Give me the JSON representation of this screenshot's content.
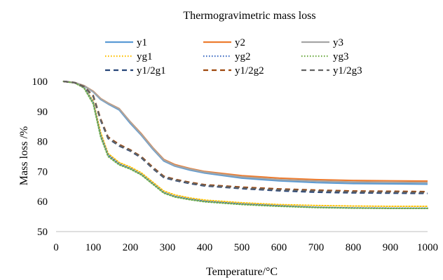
{
  "chart_data": {
    "type": "line",
    "title": "Thermogravimetric mass loss",
    "xlabel": "Temperature/°C",
    "ylabel": "Mass loss /%",
    "xlim": [
      0,
      1000
    ],
    "ylim": [
      50,
      100
    ],
    "xticks": [
      "0",
      "100",
      "200",
      "300",
      "400",
      "500",
      "600",
      "700",
      "800",
      "900",
      "1000"
    ],
    "yticks": [
      "50",
      "60",
      "70",
      "80",
      "90",
      "100"
    ],
    "grid": false,
    "legend_position": "top",
    "x": [
      20,
      50,
      75,
      100,
      120,
      140,
      170,
      200,
      230,
      260,
      290,
      320,
      360,
      400,
      500,
      600,
      700,
      800,
      900,
      1000
    ],
    "series": [
      {
        "name": "y1",
        "color": "#5b9bd5",
        "dash": "solid",
        "values": [
          100,
          99.6,
          98.5,
          96.5,
          94,
          92.5,
          90.5,
          86,
          82,
          77.5,
          73.5,
          71.8,
          70.5,
          69.5,
          67.8,
          66.9,
          66.3,
          66.0,
          65.9,
          65.8
        ]
      },
      {
        "name": "y2",
        "color": "#ed7d31",
        "dash": "solid",
        "values": [
          100,
          99.6,
          98.6,
          96.7,
          94.3,
          92.8,
          90.9,
          86.5,
          82.5,
          78,
          74,
          72.3,
          71,
          70,
          68.6,
          67.8,
          67.3,
          67.0,
          66.9,
          66.8
        ]
      },
      {
        "name": "y3",
        "color": "#a5a5a5",
        "dash": "solid",
        "values": [
          100,
          99.6,
          98.6,
          96.6,
          94.2,
          92.7,
          90.8,
          86.4,
          82.3,
          77.8,
          73.8,
          72.0,
          70.8,
          69.8,
          68.2,
          67.3,
          66.8,
          66.5,
          66.4,
          66.3
        ]
      },
      {
        "name": "yg1",
        "color": "#ffc000",
        "dash": "dot",
        "values": [
          100,
          99.5,
          98,
          93.5,
          83,
          76,
          73,
          71.5,
          69.5,
          66.5,
          63.5,
          62.2,
          61.2,
          60.5,
          59.6,
          59.0,
          58.7,
          58.5,
          58.4,
          58.4
        ]
      },
      {
        "name": "yg2",
        "color": "#4472c4",
        "dash": "dot",
        "values": [
          100,
          99.5,
          98,
          93,
          82,
          75.5,
          72.5,
          71,
          69,
          66,
          63,
          61.7,
          60.8,
          60.1,
          59.2,
          58.6,
          58.1,
          57.9,
          57.8,
          57.8
        ]
      },
      {
        "name": "yg3",
        "color": "#70ad47",
        "dash": "dot",
        "values": [
          100,
          99.5,
          97.8,
          92.5,
          81.5,
          75,
          72.2,
          70.8,
          68.8,
          65.8,
          62.8,
          61.5,
          60.6,
          59.9,
          59.0,
          58.4,
          58.0,
          57.8,
          57.7,
          57.7
        ]
      },
      {
        "name": "y1/2g1",
        "color": "#264478",
        "dash": "dash",
        "values": [
          100,
          99.6,
          98.2,
          95,
          87,
          81,
          78.5,
          76.8,
          74.5,
          71,
          68,
          67,
          66,
          65.2,
          64.3,
          63.6,
          63.1,
          62.9,
          62.8,
          62.7
        ]
      },
      {
        "name": "y1/2g2",
        "color": "#9e480e",
        "dash": "dash",
        "values": [
          100,
          99.6,
          98.3,
          95.3,
          87.5,
          81.5,
          79,
          77.2,
          74.9,
          71.5,
          68.4,
          67.4,
          66.4,
          65.6,
          64.8,
          64.2,
          63.8,
          63.5,
          63.4,
          63.3
        ]
      },
      {
        "name": "y1/2g3",
        "color": "#636363",
        "dash": "dash",
        "values": [
          100,
          99.6,
          98.2,
          95.1,
          87.2,
          81.2,
          78.7,
          77.0,
          74.7,
          71.2,
          68.2,
          67.2,
          66.2,
          65.4,
          64.5,
          63.9,
          63.5,
          63.2,
          63.1,
          63.0
        ]
      }
    ]
  }
}
